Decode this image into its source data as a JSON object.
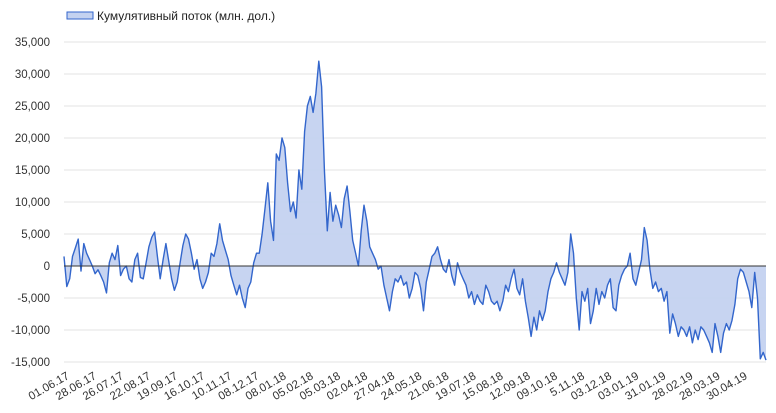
{
  "chart_data": {
    "type": "area",
    "legend": "Кумулятивный поток (млн. дол.)",
    "legend_position": "top-left",
    "grid": true,
    "ylim": [
      -15000,
      35000
    ],
    "yticks": [
      35000,
      30000,
      25000,
      20000,
      15000,
      10000,
      5000,
      0,
      -5000,
      -10000,
      -15000
    ],
    "ytick_labels": [
      "35,000",
      "30,000",
      "25,000",
      "20,000",
      "15,000",
      "10,000",
      "5,000",
      "0",
      "-5,000",
      "-10,000",
      "-15,000"
    ],
    "x_tick_labels": [
      "01.06.17",
      "28.06.17",
      "26.07.17",
      "22.08.17",
      "19.09.17",
      "16.10.17",
      "10.11.17",
      "08.12.17",
      "08.01.18",
      "05.02.18",
      "05.03.18",
      "02.04.18",
      "27.04.18",
      "24.05.18",
      "21.06.18",
      "19.07.18",
      "15.08.18",
      "12.09.18",
      "09.10.18",
      "5.11.18",
      "03.12.18",
      "03.01.19",
      "31.01.19",
      "28.02.19",
      "28.03.19",
      "30.04.19"
    ],
    "series": [
      {
        "name": "Кумулятивный поток (млн. дол.)",
        "color": "#3366cc",
        "fill": "#c4d2f0",
        "values": [
          1500,
          -3200,
          -2000,
          1500,
          2800,
          4200,
          -800,
          3500,
          2000,
          1000,
          0,
          -1200,
          -600,
          -1500,
          -2500,
          -4200,
          500,
          2000,
          1000,
          3200,
          -1500,
          -500,
          0,
          -2000,
          -2500,
          1000,
          2000,
          -1800,
          -2000,
          500,
          3000,
          4500,
          5300,
          1500,
          -2000,
          1000,
          3500,
          800,
          -2000,
          -3800,
          -2500,
          500,
          3200,
          5000,
          4200,
          2000,
          -500,
          1000,
          -2000,
          -3500,
          -2500,
          -1000,
          2000,
          1500,
          3500,
          6600,
          4000,
          2500,
          1000,
          -1500,
          -3000,
          -4500,
          -3000,
          -5000,
          -6500,
          -3500,
          -2500,
          500,
          2000,
          2000,
          5000,
          9000,
          13000,
          7000,
          4000,
          17500,
          16500,
          20000,
          18500,
          13000,
          8500,
          10000,
          7500,
          15000,
          12000,
          21000,
          25000,
          26500,
          24000,
          27000,
          32000,
          28000,
          15000,
          5500,
          11500,
          7000,
          9500,
          8000,
          6000,
          10500,
          12500,
          8500,
          4000,
          2000,
          0,
          5500,
          9500,
          7000,
          3000,
          2000,
          1000,
          -500,
          0,
          -3000,
          -5000,
          -7000,
          -4000,
          -2000,
          -2500,
          -1500,
          -3000,
          -2500,
          -5000,
          -3500,
          -1000,
          -1500,
          -3500,
          -7000,
          -2500,
          -500,
          1500,
          2000,
          3000,
          1000,
          -500,
          -1000,
          1000,
          -1500,
          -3000,
          500,
          -1000,
          -2000,
          -3000,
          -5000,
          -4000,
          -6000,
          -4500,
          -5500,
          -6000,
          -3000,
          -4000,
          -5500,
          -6000,
          -5500,
          -7000,
          -5500,
          -3000,
          -4000,
          -2000,
          -500,
          -3500,
          -4500,
          -2000,
          -5500,
          -8000,
          -11000,
          -8000,
          -10000,
          -7000,
          -8500,
          -7000,
          -4000,
          -2000,
          -1000,
          500,
          -1000,
          -2000,
          -3000,
          -1000,
          5000,
          2000,
          -5000,
          -10000,
          -4000,
          -5500,
          -3500,
          -9000,
          -7000,
          -3500,
          -6000,
          -4000,
          -5000,
          -3000,
          -2000,
          -6500,
          -7000,
          -3000,
          -1500,
          -500,
          0,
          2000,
          -2000,
          -3000,
          -1000,
          1000,
          6000,
          4000,
          -500,
          -3500,
          -2500,
          -4000,
          -3500,
          -5500,
          -4000,
          -10500,
          -7500,
          -9000,
          -11000,
          -9500,
          -10000,
          -11000,
          -9500,
          -12000,
          -10000,
          -11500,
          -9500,
          -10000,
          -11000,
          -12000,
          -13500,
          -9000,
          -11000,
          -13500,
          -10500,
          -9000,
          -10000,
          -8500,
          -6000,
          -2000,
          -500,
          -1000,
          -2500,
          -4000,
          -6500,
          -1000,
          -5000,
          -14500,
          -13500,
          -14700
        ]
      }
    ]
  }
}
